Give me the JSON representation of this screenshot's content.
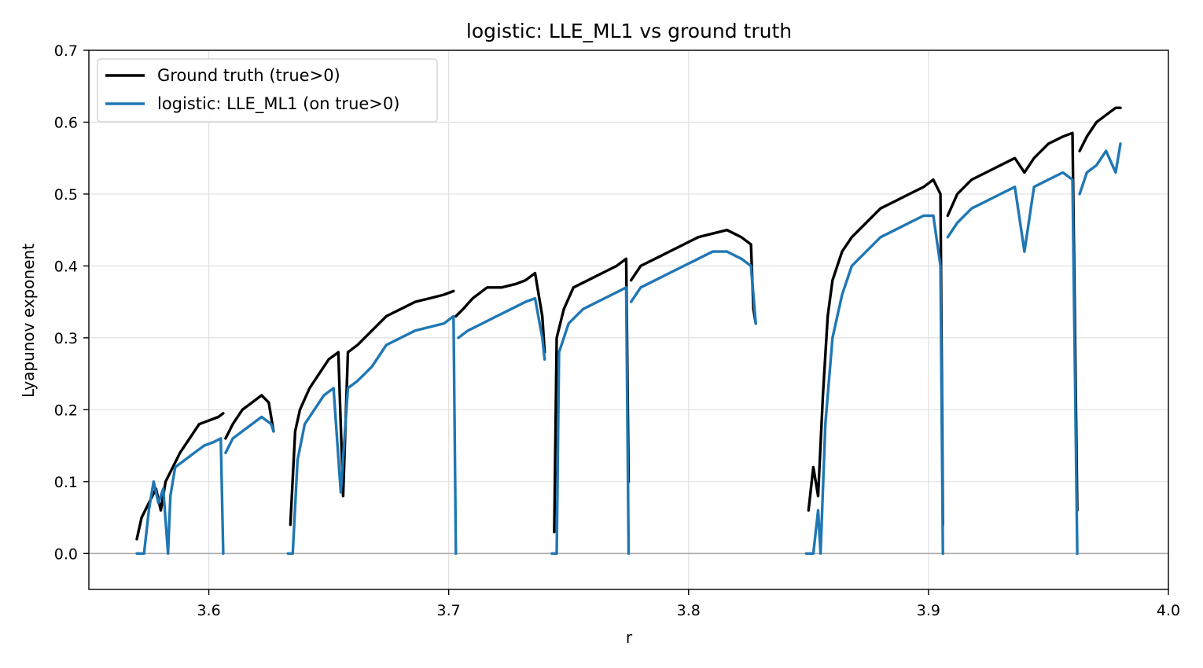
{
  "chart_data": {
    "type": "line",
    "title": "logistic: LLE_ML1 vs ground truth",
    "xlabel": "r",
    "ylabel": "Lyapunov exponent",
    "xlim": [
      3.55,
      4.0
    ],
    "ylim": [
      -0.05,
      0.7
    ],
    "xticks": [
      "3.6",
      "3.7",
      "3.8",
      "3.9",
      "4.0"
    ],
    "yticks": [
      "0.0",
      "0.1",
      "0.2",
      "0.3",
      "0.4",
      "0.5",
      "0.6",
      "0.7"
    ],
    "grid": true,
    "legend_position": "top-left",
    "zero_line": true,
    "series": [
      {
        "name": "Ground truth (true>0)",
        "color": "#000000",
        "segments": [
          [
            [
              3.57,
              0.02
            ],
            [
              3.572,
              0.05
            ],
            [
              3.575,
              0.07
            ],
            [
              3.578,
              0.09
            ],
            [
              3.58,
              0.06
            ],
            [
              3.582,
              0.1
            ],
            [
              3.585,
              0.12
            ],
            [
              3.588,
              0.14
            ],
            [
              3.592,
              0.16
            ],
            [
              3.596,
              0.18
            ],
            [
              3.6,
              0.185
            ],
            [
              3.604,
              0.19
            ],
            [
              3.606,
              0.195
            ]
          ],
          [
            [
              3.607,
              0.16
            ],
            [
              3.61,
              0.18
            ],
            [
              3.614,
              0.2
            ],
            [
              3.618,
              0.21
            ],
            [
              3.622,
              0.22
            ],
            [
              3.625,
              0.21
            ],
            [
              3.627,
              0.17
            ]
          ],
          [
            [
              3.634,
              0.04
            ],
            [
              3.636,
              0.17
            ],
            [
              3.638,
              0.2
            ],
            [
              3.642,
              0.23
            ],
            [
              3.646,
              0.25
            ],
            [
              3.65,
              0.27
            ],
            [
              3.654,
              0.28
            ],
            [
              3.656,
              0.08
            ],
            [
              3.658,
              0.28
            ],
            [
              3.662,
              0.29
            ],
            [
              3.668,
              0.31
            ],
            [
              3.674,
              0.33
            ],
            [
              3.68,
              0.34
            ],
            [
              3.686,
              0.35
            ],
            [
              3.692,
              0.355
            ],
            [
              3.698,
              0.36
            ],
            [
              3.702,
              0.365
            ]
          ],
          [
            [
              3.703,
              0.33
            ],
            [
              3.706,
              0.34
            ],
            [
              3.71,
              0.355
            ],
            [
              3.716,
              0.37
            ],
            [
              3.722,
              0.37
            ],
            [
              3.728,
              0.375
            ],
            [
              3.732,
              0.38
            ],
            [
              3.736,
              0.39
            ],
            [
              3.739,
              0.33
            ],
            [
              3.74,
              0.28
            ]
          ],
          [
            [
              3.744,
              0.03
            ],
            [
              3.745,
              0.3
            ],
            [
              3.748,
              0.34
            ],
            [
              3.752,
              0.37
            ],
            [
              3.758,
              0.38
            ],
            [
              3.764,
              0.39
            ],
            [
              3.77,
              0.4
            ],
            [
              3.774,
              0.41
            ],
            [
              3.775,
              0.1
            ]
          ],
          [
            [
              3.776,
              0.38
            ],
            [
              3.78,
              0.4
            ],
            [
              3.786,
              0.41
            ],
            [
              3.792,
              0.42
            ],
            [
              3.798,
              0.43
            ],
            [
              3.804,
              0.44
            ],
            [
              3.81,
              0.445
            ],
            [
              3.816,
              0.45
            ],
            [
              3.822,
              0.44
            ],
            [
              3.826,
              0.43
            ],
            [
              3.827,
              0.34
            ],
            [
              3.828,
              0.32
            ]
          ],
          [
            [
              3.85,
              0.06
            ],
            [
              3.852,
              0.12
            ],
            [
              3.854,
              0.08
            ],
            [
              3.856,
              0.22
            ],
            [
              3.858,
              0.33
            ],
            [
              3.86,
              0.38
            ],
            [
              3.864,
              0.42
            ],
            [
              3.868,
              0.44
            ],
            [
              3.874,
              0.46
            ],
            [
              3.88,
              0.48
            ],
            [
              3.886,
              0.49
            ],
            [
              3.892,
              0.5
            ],
            [
              3.898,
              0.51
            ],
            [
              3.902,
              0.52
            ],
            [
              3.905,
              0.5
            ],
            [
              3.906,
              0.04
            ]
          ],
          [
            [
              3.908,
              0.47
            ],
            [
              3.912,
              0.5
            ],
            [
              3.918,
              0.52
            ],
            [
              3.924,
              0.53
            ],
            [
              3.93,
              0.54
            ],
            [
              3.936,
              0.55
            ],
            [
              3.94,
              0.53
            ],
            [
              3.944,
              0.55
            ],
            [
              3.95,
              0.57
            ],
            [
              3.956,
              0.58
            ],
            [
              3.96,
              0.585
            ],
            [
              3.962,
              0.06
            ]
          ],
          [
            [
              3.963,
              0.56
            ],
            [
              3.966,
              0.58
            ],
            [
              3.97,
              0.6
            ],
            [
              3.974,
              0.61
            ],
            [
              3.978,
              0.62
            ],
            [
              3.98,
              0.62
            ]
          ]
        ]
      },
      {
        "name": "logistic: LLE_ML1 (on true>0)",
        "color": "#1f77b4",
        "segments": [
          [
            [
              3.57,
              0.0
            ],
            [
              3.573,
              0.0
            ],
            [
              3.575,
              0.06
            ],
            [
              3.577,
              0.1
            ],
            [
              3.579,
              0.07
            ],
            [
              3.581,
              0.09
            ],
            [
              3.583,
              0.0
            ],
            [
              3.584,
              0.08
            ],
            [
              3.586,
              0.12
            ],
            [
              3.59,
              0.13
            ],
            [
              3.594,
              0.14
            ],
            [
              3.598,
              0.15
            ],
            [
              3.602,
              0.155
            ],
            [
              3.605,
              0.16
            ],
            [
              3.606,
              0.0
            ]
          ],
          [
            [
              3.607,
              0.14
            ],
            [
              3.61,
              0.16
            ],
            [
              3.614,
              0.17
            ],
            [
              3.618,
              0.18
            ],
            [
              3.622,
              0.19
            ],
            [
              3.626,
              0.18
            ],
            [
              3.627,
              0.17
            ]
          ],
          [
            [
              3.633,
              0.0
            ],
            [
              3.635,
              0.0
            ],
            [
              3.637,
              0.13
            ],
            [
              3.64,
              0.18
            ],
            [
              3.644,
              0.2
            ],
            [
              3.648,
              0.22
            ],
            [
              3.652,
              0.23
            ],
            [
              3.655,
              0.085
            ],
            [
              3.658,
              0.23
            ],
            [
              3.662,
              0.24
            ],
            [
              3.668,
              0.26
            ],
            [
              3.674,
              0.29
            ],
            [
              3.68,
              0.3
            ],
            [
              3.686,
              0.31
            ],
            [
              3.692,
              0.315
            ],
            [
              3.698,
              0.32
            ],
            [
              3.702,
              0.33
            ],
            [
              3.703,
              0.0
            ]
          ],
          [
            [
              3.704,
              0.3
            ],
            [
              3.708,
              0.31
            ],
            [
              3.714,
              0.32
            ],
            [
              3.72,
              0.33
            ],
            [
              3.726,
              0.34
            ],
            [
              3.732,
              0.35
            ],
            [
              3.736,
              0.355
            ],
            [
              3.739,
              0.3
            ],
            [
              3.74,
              0.27
            ]
          ],
          [
            [
              3.743,
              0.0
            ],
            [
              3.745,
              0.0
            ],
            [
              3.746,
              0.28
            ],
            [
              3.75,
              0.32
            ],
            [
              3.756,
              0.34
            ],
            [
              3.762,
              0.35
            ],
            [
              3.768,
              0.36
            ],
            [
              3.774,
              0.37
            ],
            [
              3.775,
              0.0
            ]
          ],
          [
            [
              3.776,
              0.35
            ],
            [
              3.78,
              0.37
            ],
            [
              3.786,
              0.38
            ],
            [
              3.792,
              0.39
            ],
            [
              3.798,
              0.4
            ],
            [
              3.804,
              0.41
            ],
            [
              3.81,
              0.42
            ],
            [
              3.816,
              0.42
            ],
            [
              3.822,
              0.41
            ],
            [
              3.826,
              0.4
            ],
            [
              3.828,
              0.32
            ]
          ],
          [
            [
              3.849,
              0.0
            ],
            [
              3.852,
              0.0
            ],
            [
              3.854,
              0.06
            ],
            [
              3.855,
              0.0
            ],
            [
              3.857,
              0.18
            ],
            [
              3.86,
              0.3
            ],
            [
              3.864,
              0.36
            ],
            [
              3.868,
              0.4
            ],
            [
              3.874,
              0.42
            ],
            [
              3.88,
              0.44
            ],
            [
              3.886,
              0.45
            ],
            [
              3.892,
              0.46
            ],
            [
              3.898,
              0.47
            ],
            [
              3.902,
              0.47
            ],
            [
              3.905,
              0.4
            ],
            [
              3.906,
              0.0
            ]
          ],
          [
            [
              3.908,
              0.44
            ],
            [
              3.912,
              0.46
            ],
            [
              3.918,
              0.48
            ],
            [
              3.924,
              0.49
            ],
            [
              3.93,
              0.5
            ],
            [
              3.936,
              0.51
            ],
            [
              3.94,
              0.42
            ],
            [
              3.944,
              0.51
            ],
            [
              3.95,
              0.52
            ],
            [
              3.956,
              0.53
            ],
            [
              3.96,
              0.52
            ],
            [
              3.962,
              0.0
            ]
          ],
          [
            [
              3.963,
              0.5
            ],
            [
              3.966,
              0.53
            ],
            [
              3.97,
              0.54
            ],
            [
              3.974,
              0.56
            ],
            [
              3.978,
              0.53
            ],
            [
              3.98,
              0.57
            ]
          ]
        ]
      }
    ]
  }
}
